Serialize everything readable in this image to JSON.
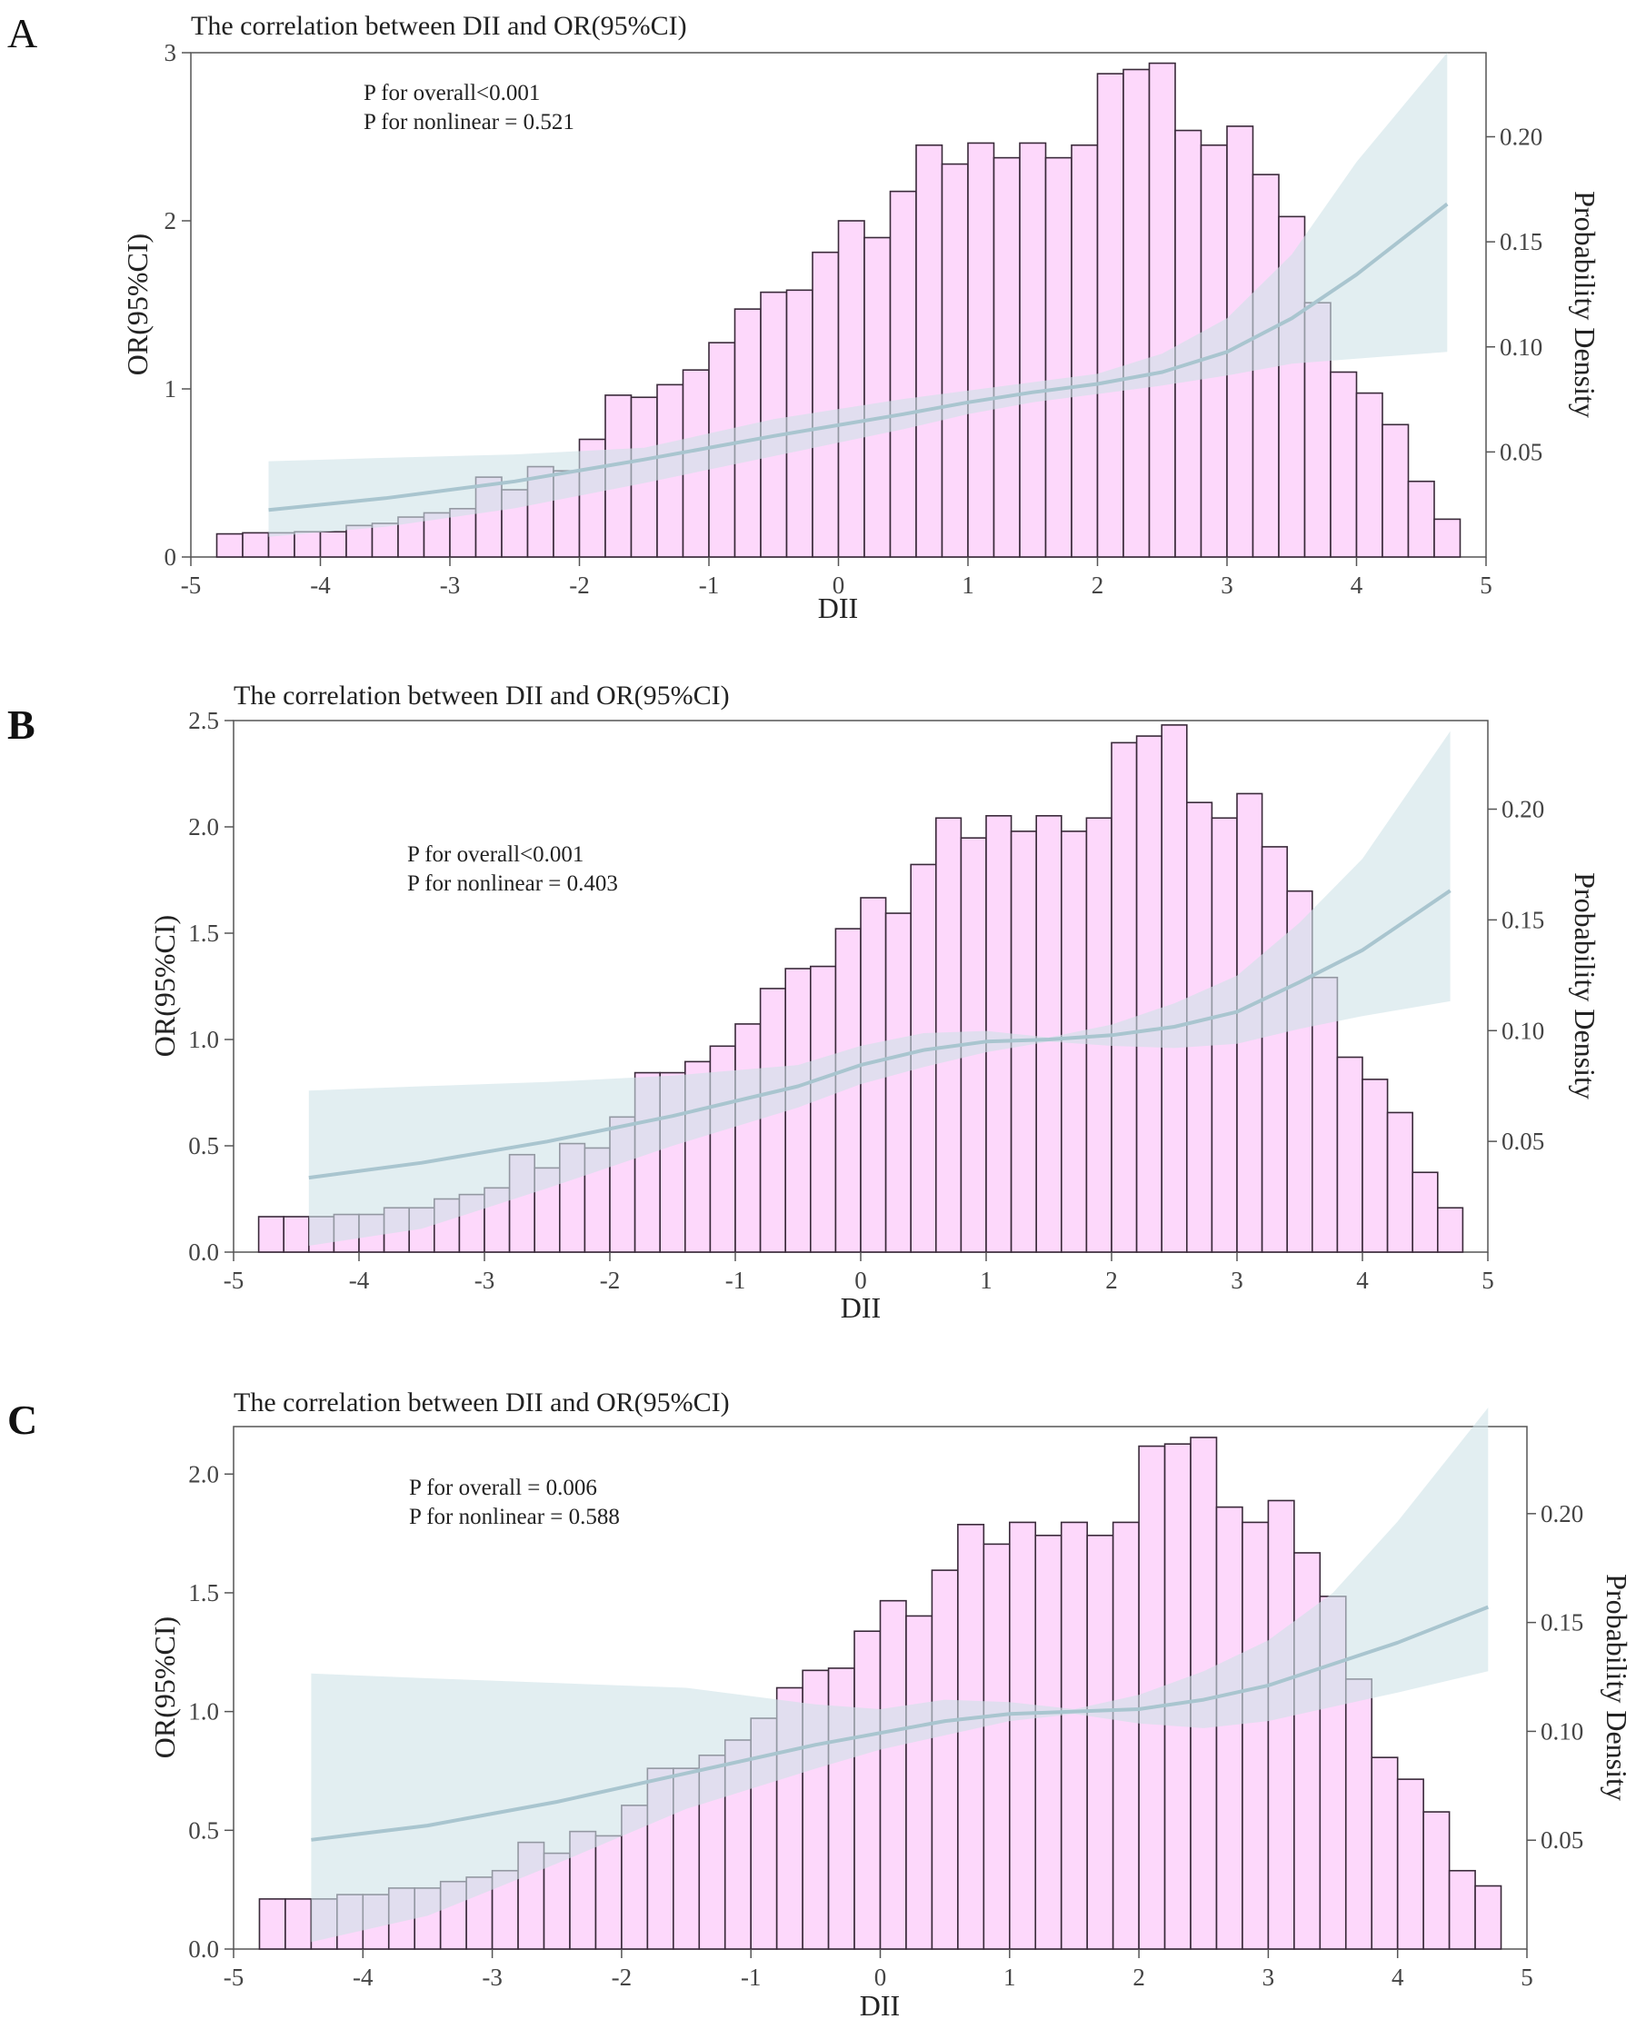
{
  "figure": {
    "panel_labels": [
      "A",
      "B",
      "C"
    ]
  },
  "colors": {
    "bar_fill": "#fdd8fb",
    "bar_stroke": "#3a2a3a",
    "ci_band": "#cfe3e8",
    "curve": "#a9c5cf",
    "axis": "#555555",
    "text": "#222222"
  },
  "chart_data": [
    {
      "panel": "A",
      "type": "bar+line",
      "title": "The correlation between DII and OR(95%CI)",
      "xlabel": "DII",
      "ylabel": "OR(95%CI)",
      "y2label": "Probability Density",
      "xlim": [
        -5,
        5
      ],
      "ylim": [
        0,
        3
      ],
      "y2lim": [
        0,
        0.24
      ],
      "xticks": [
        -5,
        -4,
        -3,
        -2,
        -1,
        0,
        1,
        2,
        3,
        4,
        5
      ],
      "yticks": [
        0,
        1,
        2,
        3
      ],
      "yticklabels": [
        "0",
        "1",
        "2",
        "3"
      ],
      "y2ticks": [
        0.05,
        0.1,
        0.15,
        0.2
      ],
      "y2ticklabels": [
        "0.05",
        "0.10",
        "0.15",
        "0.20"
      ],
      "annotations": [
        "P for overall<0.001",
        "P for nonlinear = 0.521"
      ],
      "histogram": {
        "bin_start": -4.8,
        "bin_width": 0.2,
        "density": [
          0.011,
          0.0115,
          0.0115,
          0.012,
          0.012,
          0.015,
          0.016,
          0.019,
          0.021,
          0.023,
          0.038,
          0.032,
          0.043,
          0.041,
          0.056,
          0.077,
          0.076,
          0.082,
          0.089,
          0.102,
          0.118,
          0.126,
          0.127,
          0.145,
          0.16,
          0.152,
          0.174,
          0.196,
          0.187,
          0.197,
          0.19,
          0.197,
          0.19,
          0.196,
          0.23,
          0.232,
          0.235,
          0.203,
          0.196,
          0.205,
          0.182,
          0.162,
          0.121,
          0.088,
          0.078,
          0.063,
          0.036,
          0.018
        ]
      },
      "curve": {
        "x": [
          -4.4,
          -3.5,
          -2.5,
          -1.5,
          -0.5,
          0.5,
          1.0,
          1.5,
          2.0,
          2.5,
          3.0,
          3.5,
          4.0,
          4.7
        ],
        "or": [
          0.28,
          0.35,
          0.45,
          0.58,
          0.72,
          0.85,
          0.92,
          0.98,
          1.03,
          1.1,
          1.22,
          1.42,
          1.68,
          2.1
        ],
        "lower": [
          0.12,
          0.18,
          0.29,
          0.44,
          0.6,
          0.76,
          0.85,
          0.92,
          0.97,
          1.02,
          1.08,
          1.15,
          1.18,
          1.22
        ],
        "upper": [
          0.57,
          0.59,
          0.61,
          0.65,
          0.82,
          0.94,
          0.99,
          1.04,
          1.09,
          1.21,
          1.42,
          1.8,
          2.35,
          3.0
        ]
      }
    },
    {
      "panel": "B",
      "type": "bar+line",
      "title": "The correlation between DII and OR(95%CI)",
      "xlabel": "DII",
      "ylabel": "OR(95%CI)",
      "y2label": "Probability Density",
      "xlim": [
        -5,
        5
      ],
      "ylim": [
        0,
        2.5
      ],
      "y2lim": [
        0,
        0.24
      ],
      "xticks": [
        -5,
        -4,
        -3,
        -2,
        -1,
        0,
        1,
        2,
        3,
        4,
        5
      ],
      "yticks": [
        0,
        0.5,
        1,
        1.5,
        2,
        2.5
      ],
      "yticklabels": [
        "0.0",
        "0.5",
        "1.0",
        "1.5",
        "2.0",
        "2.5"
      ],
      "y2ticks": [
        0.05,
        0.1,
        0.15,
        0.2
      ],
      "y2ticklabels": [
        "0.05",
        "0.10",
        "0.15",
        "0.20"
      ],
      "annotations": [
        "P for overall<0.001",
        "P for nonlinear = 0.403"
      ],
      "histogram": {
        "bin_start": -4.8,
        "bin_width": 0.2,
        "density": [
          0.016,
          0.016,
          0.016,
          0.017,
          0.017,
          0.02,
          0.02,
          0.024,
          0.026,
          0.029,
          0.044,
          0.038,
          0.049,
          0.047,
          0.061,
          0.081,
          0.081,
          0.086,
          0.093,
          0.103,
          0.119,
          0.128,
          0.129,
          0.146,
          0.16,
          0.153,
          0.175,
          0.196,
          0.187,
          0.197,
          0.19,
          0.197,
          0.19,
          0.196,
          0.23,
          0.233,
          0.238,
          0.203,
          0.196,
          0.207,
          0.183,
          0.163,
          0.124,
          0.088,
          0.078,
          0.063,
          0.036,
          0.02
        ]
      },
      "curve": {
        "x": [
          -4.4,
          -3.5,
          -2.5,
          -1.5,
          -0.5,
          0.0,
          0.5,
          1.0,
          1.5,
          2.0,
          2.5,
          3.0,
          3.5,
          4.0,
          4.7
        ],
        "or": [
          0.35,
          0.42,
          0.52,
          0.64,
          0.78,
          0.88,
          0.95,
          0.99,
          1.0,
          1.02,
          1.06,
          1.13,
          1.27,
          1.42,
          1.7
        ],
        "lower": [
          0.03,
          0.11,
          0.3,
          0.5,
          0.68,
          0.79,
          0.87,
          0.94,
          0.99,
          0.97,
          0.96,
          0.98,
          1.05,
          1.11,
          1.18
        ],
        "upper": [
          0.76,
          0.78,
          0.8,
          0.83,
          0.88,
          0.97,
          1.03,
          1.04,
          1.01,
          1.07,
          1.17,
          1.3,
          1.55,
          1.85,
          2.45
        ]
      }
    },
    {
      "panel": "C",
      "type": "bar+line",
      "title": "The correlation between DII and OR(95%CI)",
      "xlabel": "DII",
      "ylabel": "OR(95%CI)",
      "y2label": "Probability Density",
      "xlim": [
        -5,
        5
      ],
      "ylim": [
        0,
        2.2
      ],
      "y2lim": [
        0,
        0.24
      ],
      "xticks": [
        -5,
        -4,
        -3,
        -2,
        -1,
        0,
        1,
        2,
        3,
        4,
        5
      ],
      "yticks": [
        0,
        0.5,
        1,
        1.5,
        2
      ],
      "yticklabels": [
        "0.0",
        "0.5",
        "1.0",
        "1.5",
        "2.0"
      ],
      "y2ticks": [
        0.05,
        0.1,
        0.15,
        0.2
      ],
      "y2ticklabels": [
        "0.05",
        "0.10",
        "0.15",
        "0.20"
      ],
      "annotations": [
        "P for overall = 0.006",
        "P for nonlinear = 0.588"
      ],
      "histogram": {
        "bin_start": -4.8,
        "bin_width": 0.2,
        "density": [
          0.023,
          0.023,
          0.023,
          0.025,
          0.025,
          0.028,
          0.028,
          0.031,
          0.033,
          0.036,
          0.049,
          0.044,
          0.054,
          0.052,
          0.066,
          0.083,
          0.083,
          0.089,
          0.096,
          0.106,
          0.12,
          0.128,
          0.129,
          0.146,
          0.16,
          0.153,
          0.174,
          0.195,
          0.186,
          0.196,
          0.19,
          0.196,
          0.19,
          0.196,
          0.231,
          0.232,
          0.235,
          0.203,
          0.196,
          0.206,
          0.182,
          0.162,
          0.124,
          0.088,
          0.078,
          0.063,
          0.036,
          0.029
        ]
      },
      "curve": {
        "x": [
          -4.4,
          -3.5,
          -2.5,
          -1.5,
          -0.5,
          0.0,
          0.5,
          1.0,
          1.5,
          2.0,
          2.5,
          3.0,
          3.5,
          4.0,
          4.7
        ],
        "or": [
          0.46,
          0.52,
          0.62,
          0.74,
          0.86,
          0.91,
          0.96,
          0.99,
          1.0,
          1.01,
          1.05,
          1.11,
          1.2,
          1.29,
          1.44
        ],
        "lower": [
          0.03,
          0.14,
          0.36,
          0.59,
          0.76,
          0.84,
          0.9,
          0.96,
          0.99,
          0.95,
          0.93,
          0.96,
          1.02,
          1.08,
          1.17
        ],
        "upper": [
          1.16,
          1.14,
          1.12,
          1.1,
          1.03,
          1.01,
          1.05,
          1.04,
          1.01,
          1.07,
          1.17,
          1.3,
          1.5,
          1.8,
          2.28
        ]
      }
    }
  ]
}
